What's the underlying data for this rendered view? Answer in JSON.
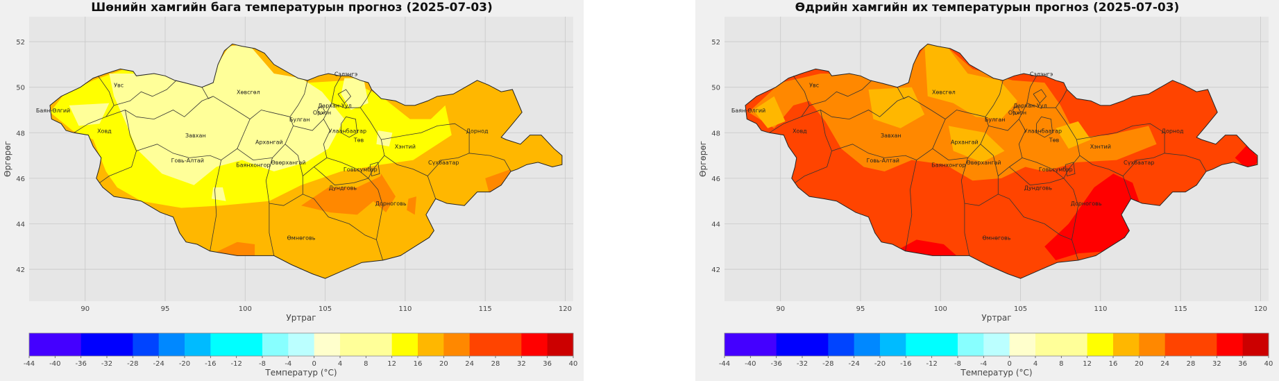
{
  "panels": [
    {
      "id": "min",
      "title": "Шөнийн хамгийн бага температурын прогноз (2025-07-03)",
      "xlabel": "Уртраг",
      "ylabel": "Өргөрөг",
      "x_ticks": [
        "90",
        "95",
        "100",
        "105",
        "110",
        "115",
        "120"
      ],
      "y_ticks": [
        "42",
        "44",
        "46",
        "48",
        "50",
        "52"
      ],
      "colorbar_label": "Температур (°C)",
      "base_color": "#ffb700",
      "fills": [
        {
          "color": "#ffff00",
          "pts": [
            [
              87.8,
              48.9
            ],
            [
              88.7,
              49.7
            ],
            [
              90.5,
              50.3
            ],
            [
              92.5,
              50.8
            ],
            [
              95,
              50.6
            ],
            [
              97.5,
              50.2
            ],
            [
              99.5,
              51.2
            ],
            [
              101.8,
              50.6
            ],
            [
              104,
              50.2
            ],
            [
              106.5,
              50.3
            ],
            [
              108.5,
              49.6
            ],
            [
              110.3,
              48.6
            ],
            [
              111.6,
              48.6
            ],
            [
              112.5,
              49.2
            ],
            [
              112.9,
              47.9
            ],
            [
              110.5,
              46.8
            ],
            [
              108.5,
              46.6
            ],
            [
              106,
              46.3
            ],
            [
              103.5,
              45.7
            ],
            [
              101.5,
              45.0
            ],
            [
              98.5,
              44.8
            ],
            [
              96,
              44.7
            ],
            [
              93.5,
              45.0
            ],
            [
              92,
              45.6
            ],
            [
              91.3,
              46.3
            ],
            [
              90.5,
              47.7
            ],
            [
              89.2,
              48.1
            ]
          ]
        },
        {
          "color": "#ffff99",
          "pts": [
            [
              91.5,
              50.6
            ],
            [
              95,
              50.6
            ],
            [
              97.5,
              50.2
            ],
            [
              99,
              51.8
            ],
            [
              100.2,
              51.9
            ],
            [
              101.8,
              50.6
            ],
            [
              103.5,
              50.4
            ],
            [
              104.8,
              49.8
            ],
            [
              106.2,
              48.6
            ],
            [
              105.2,
              47.3
            ],
            [
              103.8,
              46.7
            ],
            [
              101.8,
              46.3
            ],
            [
              99.8,
              46.8
            ],
            [
              98.2,
              46.5
            ],
            [
              96.8,
              45.7
            ],
            [
              94.8,
              46.2
            ],
            [
              93.2,
              47.3
            ],
            [
              92.5,
              48.5
            ],
            [
              91.8,
              49.6
            ]
          ]
        },
        {
          "color": "#ffff99",
          "pts": [
            [
              89.0,
              49.2
            ],
            [
              91.5,
              49.3
            ],
            [
              90.9,
              48.4
            ],
            [
              89.6,
              48.3
            ]
          ]
        },
        {
          "color": "#ffff99",
          "pts": [
            [
              98,
              45.6
            ],
            [
              98.6,
              45.6
            ],
            [
              98.8,
              45.0
            ],
            [
              97.9,
              45.1
            ]
          ]
        },
        {
          "color": "#ffff99",
          "pts": [
            [
              106.2,
              50.4
            ],
            [
              107.4,
              50.4
            ],
            [
              107.7,
              49.3
            ],
            [
              106.6,
              49.0
            ],
            [
              106.0,
              49.7
            ]
          ]
        },
        {
          "color": "#ffff99",
          "pts": [
            [
              108.3,
              48.1
            ],
            [
              109.2,
              48.0
            ],
            [
              109.0,
              47.4
            ],
            [
              108.2,
              47.5
            ]
          ]
        },
        {
          "color": "#ff8800",
          "pts": [
            [
              98.0,
              42.7
            ],
            [
              99.5,
              43.2
            ],
            [
              100.6,
              43.1
            ],
            [
              100.6,
              42.6
            ],
            [
              99.3,
              42.6
            ]
          ]
        },
        {
          "color": "#ff8800",
          "pts": [
            [
              103.5,
              44.8
            ],
            [
              105.2,
              45.6
            ],
            [
              107,
              45.6
            ],
            [
              108.5,
              46.1
            ],
            [
              108.2,
              45.1
            ],
            [
              107.0,
              44.4
            ],
            [
              105.3,
              44.5
            ]
          ]
        },
        {
          "color": "#ff8800",
          "pts": [
            [
              108.5,
              46.2
            ],
            [
              109.4,
              45.2
            ],
            [
              108.8,
              44.5
            ],
            [
              108.0,
              45.0
            ]
          ]
        },
        {
          "color": "#ff8800",
          "pts": [
            [
              115,
              46.0
            ],
            [
              116.6,
              46.4
            ],
            [
              116.4,
              45.4
            ],
            [
              115.3,
              45.2
            ]
          ]
        },
        {
          "color": "#ff8800",
          "pts": [
            [
              110.2,
              45.1
            ],
            [
              110.7,
              45.2
            ],
            [
              110.6,
              44.4
            ],
            [
              110.1,
              44.6
            ]
          ]
        }
      ]
    },
    {
      "id": "max",
      "title": "Өдрийн хамгийн их температурын прогноз (2025-07-03)",
      "xlabel": "Уртраг",
      "ylabel": "Өргөрөг",
      "x_ticks": [
        "90",
        "95",
        "100",
        "105",
        "110",
        "115",
        "120"
      ],
      "y_ticks": [
        "42",
        "44",
        "46",
        "48",
        "50",
        "52"
      ],
      "colorbar_label": "Температур (°C)",
      "base_color": "#ff4400",
      "fills": [
        {
          "color": "#ff8800",
          "pts": [
            [
              88.0,
              48.9
            ],
            [
              90.0,
              50.2
            ],
            [
              92.5,
              50.6
            ],
            [
              95,
              50.6
            ],
            [
              97.5,
              50.2
            ],
            [
              99,
              51.8
            ],
            [
              100.2,
              51.9
            ],
            [
              102,
              50.8
            ],
            [
              104.5,
              50.3
            ],
            [
              106.5,
              50.2
            ],
            [
              107.5,
              49.2
            ],
            [
              108.5,
              47.8
            ],
            [
              110.5,
              47.9
            ],
            [
              113,
              48.3
            ],
            [
              113.5,
              47.5
            ],
            [
              111,
              46.8
            ],
            [
              108.5,
              46.7
            ],
            [
              106.5,
              46.3
            ],
            [
              105.3,
              46.5
            ],
            [
              103.8,
              46.0
            ],
            [
              102.0,
              45.9
            ],
            [
              100.3,
              46.6
            ],
            [
              98.2,
              46.8
            ],
            [
              96.5,
              46.3
            ],
            [
              95.2,
              46.5
            ],
            [
              93.8,
              47.3
            ],
            [
              92.8,
              48.5
            ],
            [
              91.8,
              49.4
            ],
            [
              90.8,
              49.2
            ],
            [
              89.6,
              48.2
            ]
          ]
        },
        {
          "color": "#ffb700",
          "pts": [
            [
              99,
              51.9
            ],
            [
              100.5,
              51.7
            ],
            [
              101.7,
              50.6
            ],
            [
              103.7,
              50.3
            ],
            [
              104.8,
              49.4
            ],
            [
              103.8,
              48.6
            ],
            [
              102.2,
              48.7
            ],
            [
              100.8,
              49.3
            ],
            [
              99.2,
              49.6
            ]
          ]
        },
        {
          "color": "#ffb700",
          "pts": [
            [
              95.5,
              49.9
            ],
            [
              98.2,
              50.0
            ],
            [
              99.0,
              48.8
            ],
            [
              97.5,
              48.2
            ],
            [
              95.8,
              48.6
            ]
          ]
        },
        {
          "color": "#ffb700",
          "pts": [
            [
              100.5,
              48.3
            ],
            [
              102.8,
              48.0
            ],
            [
              104.0,
              47.2
            ],
            [
              102.6,
              46.7
            ],
            [
              100.8,
              47.2
            ]
          ]
        },
        {
          "color": "#ffb700",
          "pts": [
            [
              88.3,
              49.0
            ],
            [
              89.6,
              49.6
            ],
            [
              90.3,
              48.5
            ],
            [
              89.2,
              48.2
            ]
          ]
        },
        {
          "color": "#ffb700",
          "pts": [
            [
              107.2,
              48.2
            ],
            [
              108.6,
              48.5
            ],
            [
              109.4,
              47.7
            ],
            [
              108.0,
              47.3
            ]
          ]
        },
        {
          "color": "#ff0000",
          "pts": [
            [
              97.2,
              42.8
            ],
            [
              98.5,
              43.3
            ],
            [
              100.2,
              43.1
            ],
            [
              101.0,
              42.6
            ],
            [
              99.0,
              42.6
            ]
          ]
        },
        {
          "color": "#ff0000",
          "pts": [
            [
              106.5,
              43.0
            ],
            [
              108,
              44.0
            ],
            [
              109.6,
              45.6
            ],
            [
              110.8,
              46.2
            ],
            [
              112.0,
              45.8
            ],
            [
              112.6,
              44.6
            ],
            [
              111.8,
              43.2
            ],
            [
              110.6,
              42.8
            ],
            [
              108.6,
              42.7
            ],
            [
              107.2,
              42.4
            ]
          ]
        },
        {
          "color": "#ff0000",
          "pts": [
            [
              118.4,
              46.9
            ],
            [
              119.2,
              47.5
            ],
            [
              119.9,
              46.8
            ],
            [
              119.3,
              46.3
            ]
          ]
        },
        {
          "color": "#ff8800",
          "pts": [
            [
              104.8,
              48.9
            ],
            [
              106.0,
              48.7
            ],
            [
              106.3,
              47.6
            ],
            [
              105.2,
              47.3
            ],
            [
              104.6,
              48.0
            ]
          ]
        }
      ]
    }
  ],
  "regions": [
    {
      "name": "Увс",
      "x": 92.1,
      "y": 50.0
    },
    {
      "name": "Баян-Өлгий",
      "x": 88.0,
      "y": 48.9
    },
    {
      "name": "Ховд",
      "x": 91.2,
      "y": 48.0
    },
    {
      "name": "Хөвсгөл",
      "x": 100.2,
      "y": 49.7
    },
    {
      "name": "Завхан",
      "x": 96.9,
      "y": 47.8
    },
    {
      "name": "Архангай",
      "x": 101.5,
      "y": 47.5
    },
    {
      "name": "Говь-Алтай",
      "x": 96.4,
      "y": 46.7
    },
    {
      "name": "Баянхонгор",
      "x": 100.5,
      "y": 46.5
    },
    {
      "name": "Өвөрхангай",
      "x": 102.7,
      "y": 46.6
    },
    {
      "name": "Сэлэнгэ",
      "x": 106.3,
      "y": 50.5
    },
    {
      "name": "Дархан-Уул",
      "x": 105.6,
      "y": 49.1
    },
    {
      "name": "Орхон",
      "x": 104.8,
      "y": 48.8
    },
    {
      "name": "Булган",
      "x": 103.4,
      "y": 48.5
    },
    {
      "name": "Улаанбаатар",
      "x": 106.4,
      "y": 48.0
    },
    {
      "name": "Төв",
      "x": 107.1,
      "y": 47.6
    },
    {
      "name": "Хэнтий",
      "x": 110.0,
      "y": 47.3
    },
    {
      "name": "Дорнод",
      "x": 114.5,
      "y": 48.0
    },
    {
      "name": "Сүхбаатар",
      "x": 112.4,
      "y": 46.6
    },
    {
      "name": "Говьсүмбэр",
      "x": 107.2,
      "y": 46.3
    },
    {
      "name": "Дундговь",
      "x": 106.1,
      "y": 45.5
    },
    {
      "name": "Дорноговь",
      "x": 109.1,
      "y": 44.8
    },
    {
      "name": "Өмнөговь",
      "x": 103.5,
      "y": 43.3
    }
  ],
  "colorbar": {
    "ticks": [
      "-44",
      "-40",
      "-36",
      "-32",
      "-28",
      "-24",
      "-20",
      "-16",
      "-12",
      "-8",
      "-4",
      "0",
      "4",
      "8",
      "12",
      "16",
      "20",
      "24",
      "28",
      "32",
      "36",
      "40"
    ],
    "bins": [
      {
        "from": -44,
        "to": -36,
        "color": "#4400ff"
      },
      {
        "from": -36,
        "to": -28,
        "color": "#0000ff"
      },
      {
        "from": -28,
        "to": -24,
        "color": "#0044ff"
      },
      {
        "from": -24,
        "to": -20,
        "color": "#0088ff"
      },
      {
        "from": -20,
        "to": -16,
        "color": "#00bbff"
      },
      {
        "from": -16,
        "to": -8,
        "color": "#00ffff"
      },
      {
        "from": -8,
        "to": -4,
        "color": "#88ffff"
      },
      {
        "from": -4,
        "to": 0,
        "color": "#bbffff"
      },
      {
        "from": 0,
        "to": 4,
        "color": "#ffffcc"
      },
      {
        "from": 4,
        "to": 12,
        "color": "#ffff99"
      },
      {
        "from": 12,
        "to": 16,
        "color": "#ffff00"
      },
      {
        "from": 16,
        "to": 20,
        "color": "#ffb700"
      },
      {
        "from": 20,
        "to": 24,
        "color": "#ff8800"
      },
      {
        "from": 24,
        "to": 32,
        "color": "#ff4400"
      },
      {
        "from": 32,
        "to": 36,
        "color": "#ff0000"
      },
      {
        "from": 36,
        "to": 40,
        "color": "#cc0000"
      }
    ]
  },
  "chart_data": [
    {
      "type": "heatmap",
      "title": "Шөнийн хамгийн бага температурын прогноз (2025-07-03)",
      "xlabel": "Уртраг",
      "ylabel": "Өргөрөг",
      "xlim": [
        86.5,
        120.5
      ],
      "ylim": [
        40.6,
        53.1
      ],
      "colorbar_label": "Температур (°C)",
      "colorbar_range": [
        -44,
        40
      ],
      "dominant_range": [
        16,
        20
      ],
      "observed_ranges": [
        "4–12",
        "12–16",
        "16–20",
        "20–24"
      ]
    },
    {
      "type": "heatmap",
      "title": "Өдрийн хамгийн их температурын прогноз (2025-07-03)",
      "xlabel": "Уртраг",
      "ylabel": "Өргөрөг",
      "xlim": [
        86.5,
        120.5
      ],
      "ylim": [
        40.6,
        53.1
      ],
      "colorbar_label": "Температур (°C)",
      "colorbar_range": [
        -44,
        40
      ],
      "dominant_range": [
        24,
        32
      ],
      "observed_ranges": [
        "16–20",
        "20–24",
        "24–32",
        "32–36"
      ]
    }
  ]
}
